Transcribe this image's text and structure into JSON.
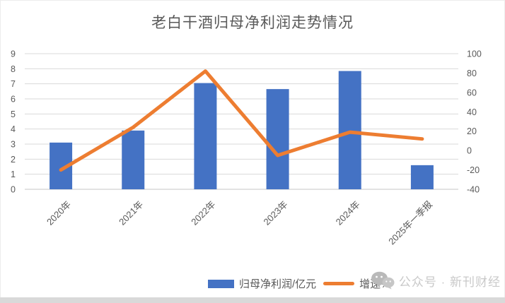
{
  "watermark": {
    "icon": "wechat-icon",
    "text": "公众号 · 新刊财经"
  },
  "chart_data": {
    "type": "bar",
    "subtype": "combo-bar-line-dual-axis",
    "title": "老白干酒归母净利润走势情况",
    "categories": [
      "2020年",
      "2021年",
      "2022年",
      "2023年",
      "2024年",
      "2025年一季报"
    ],
    "series": [
      {
        "name": "归母净利润/亿元",
        "type": "bar",
        "axis": "left",
        "color": "#4472C4",
        "values": [
          3.1,
          3.9,
          7.05,
          6.65,
          7.85,
          1.6
        ]
      },
      {
        "name": "增速%",
        "type": "line",
        "axis": "right",
        "color": "#ED7D31",
        "values": [
          -20,
          24,
          82,
          -5,
          19,
          12
        ]
      }
    ],
    "left_axis": {
      "min": 0,
      "max": 9,
      "step": 1,
      "ticks": [
        0,
        1,
        2,
        3,
        4,
        5,
        6,
        7,
        8,
        9
      ]
    },
    "right_axis": {
      "min": -40,
      "max": 100,
      "step": 20,
      "ticks": [
        -40,
        -20,
        0,
        20,
        40,
        60,
        80,
        100
      ]
    },
    "grid": true,
    "gridline_color": "#d9d9d9",
    "axis_label_color": "#595959",
    "legend_position": "bottom"
  }
}
